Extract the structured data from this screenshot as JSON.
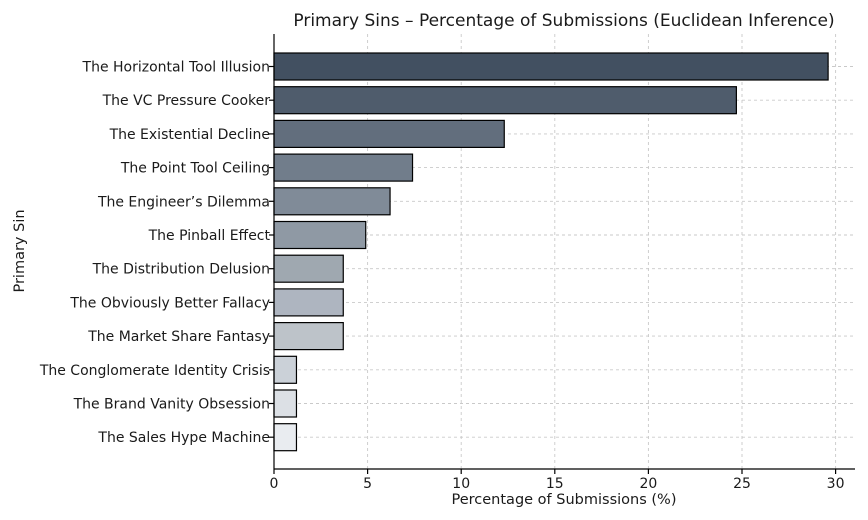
{
  "chart_data": {
    "type": "bar",
    "orientation": "horizontal",
    "title": "Primary Sins – Percentage of Submissions (Euclidean Inference)",
    "xlabel": "Percentage of Submissions (%)",
    "ylabel": "Primary Sin",
    "xlim": [
      0,
      31
    ],
    "xticks": [
      0,
      5,
      10,
      15,
      20,
      25,
      30
    ],
    "grid": true,
    "categories": [
      "The Horizontal Tool Illusion",
      "The VC Pressure Cooker",
      "The Existential Decline",
      "The Point Tool Ceiling",
      "The Engineer’s Dilemma",
      "The Pinball Effect",
      "The Distribution Delusion",
      "The Obviously Better Fallacy",
      "The Market Share Fantasy",
      "The Conglomerate Identity Crisis",
      "The Brand Vanity Obsession",
      "The Sales Hype Machine"
    ],
    "values": [
      29.6,
      24.7,
      12.3,
      7.4,
      6.2,
      4.9,
      3.7,
      3.7,
      3.7,
      1.2,
      1.2,
      1.2
    ],
    "colors": [
      "#425061",
      "#4f5c6c",
      "#626e7d",
      "#717d8b",
      "#808b98",
      "#8f99a4",
      "#9fa8b0",
      "#aeb5c0",
      "#bdc3c9",
      "#cbd1d8",
      "#dce0e5",
      "#e9ecf0"
    ]
  }
}
